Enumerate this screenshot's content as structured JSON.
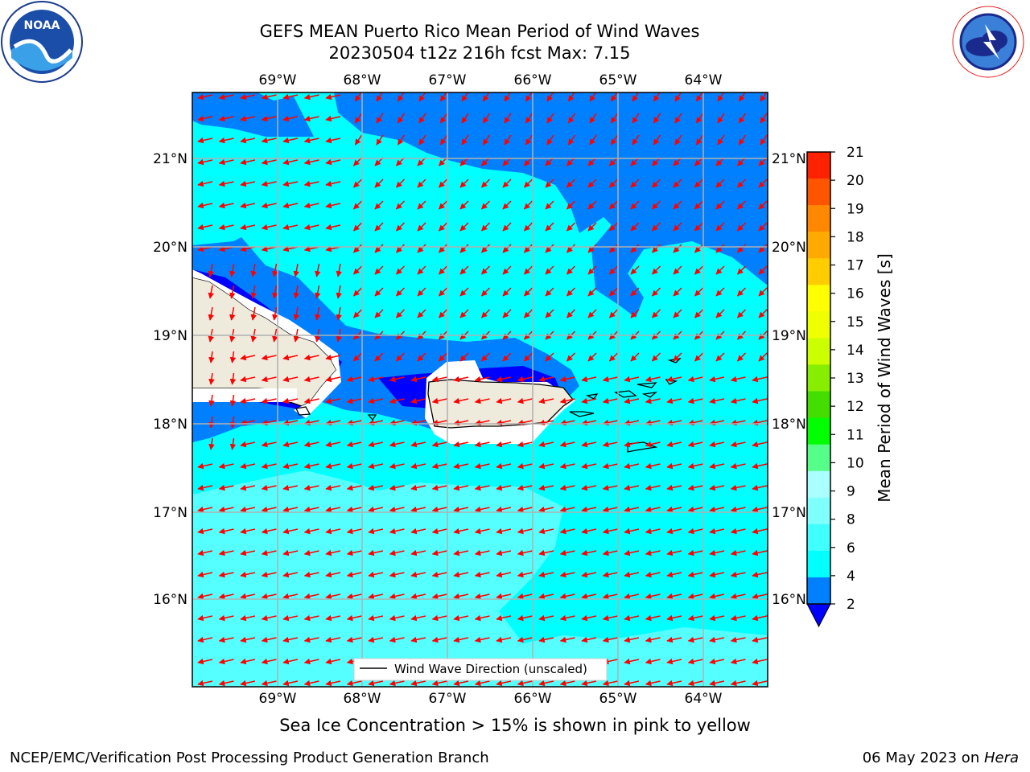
{
  "header": {
    "title_line1": "GEFS MEAN Puerto Rico Mean Period of Wind Waves",
    "title_line2": "20230504 t12z 216h fcst   Max: 7.15"
  },
  "logos": {
    "left": "NOAA",
    "left_ring_text": "NATIONAL OCEANIC AND ATMOSPHERIC ADMINISTRATION • U.S. DEPARTMENT OF COMMERCE",
    "right_ring_text": "NATIONAL WEATHER SERVICE"
  },
  "map": {
    "lon_labels": [
      "69°W",
      "68°W",
      "67°W",
      "66°W",
      "65°W",
      "64°W"
    ],
    "lat_labels": [
      "21°N",
      "20°N",
      "19°N",
      "18°N",
      "17°N",
      "16°N"
    ],
    "legend_label": "Wind Wave Direction (unscaled)",
    "colors": {
      "land": "#efebdc",
      "ocean_4_6": "#00ffff",
      "ocean_2_4": "#0080ff",
      "ocean_lt2": "#0000ff",
      "ocean_6_8": "#55ffff",
      "arrow": "#ff0000",
      "grid": "#b0b0b0"
    }
  },
  "colorbar": {
    "label": "Mean Period of Wind Waves [s]",
    "ticks": [
      "2",
      "4",
      "6",
      "8",
      "9",
      "10",
      "11",
      "12",
      "13",
      "14",
      "15",
      "16",
      "17",
      "18",
      "19",
      "20",
      "21"
    ],
    "colors": [
      "#0080ff",
      "#00ffff",
      "#40ffff",
      "#80ffff",
      "#aaffff",
      "#55ff88",
      "#00ff00",
      "#44dd00",
      "#88ee00",
      "#ccff00",
      "#eeff00",
      "#ffff00",
      "#ffcc00",
      "#ffaa00",
      "#ff8800",
      "#ff5500",
      "#ff2200",
      "#ff0000"
    ],
    "under_color": "#0000ff"
  },
  "footer": {
    "note": "Sea Ice Concentration > 15% is shown in pink to yellow",
    "left": "NCEP/EMC/Verification Post Processing Product Generation Branch",
    "right_prefix": "06 May 2023 on ",
    "right_host": "Hera"
  }
}
